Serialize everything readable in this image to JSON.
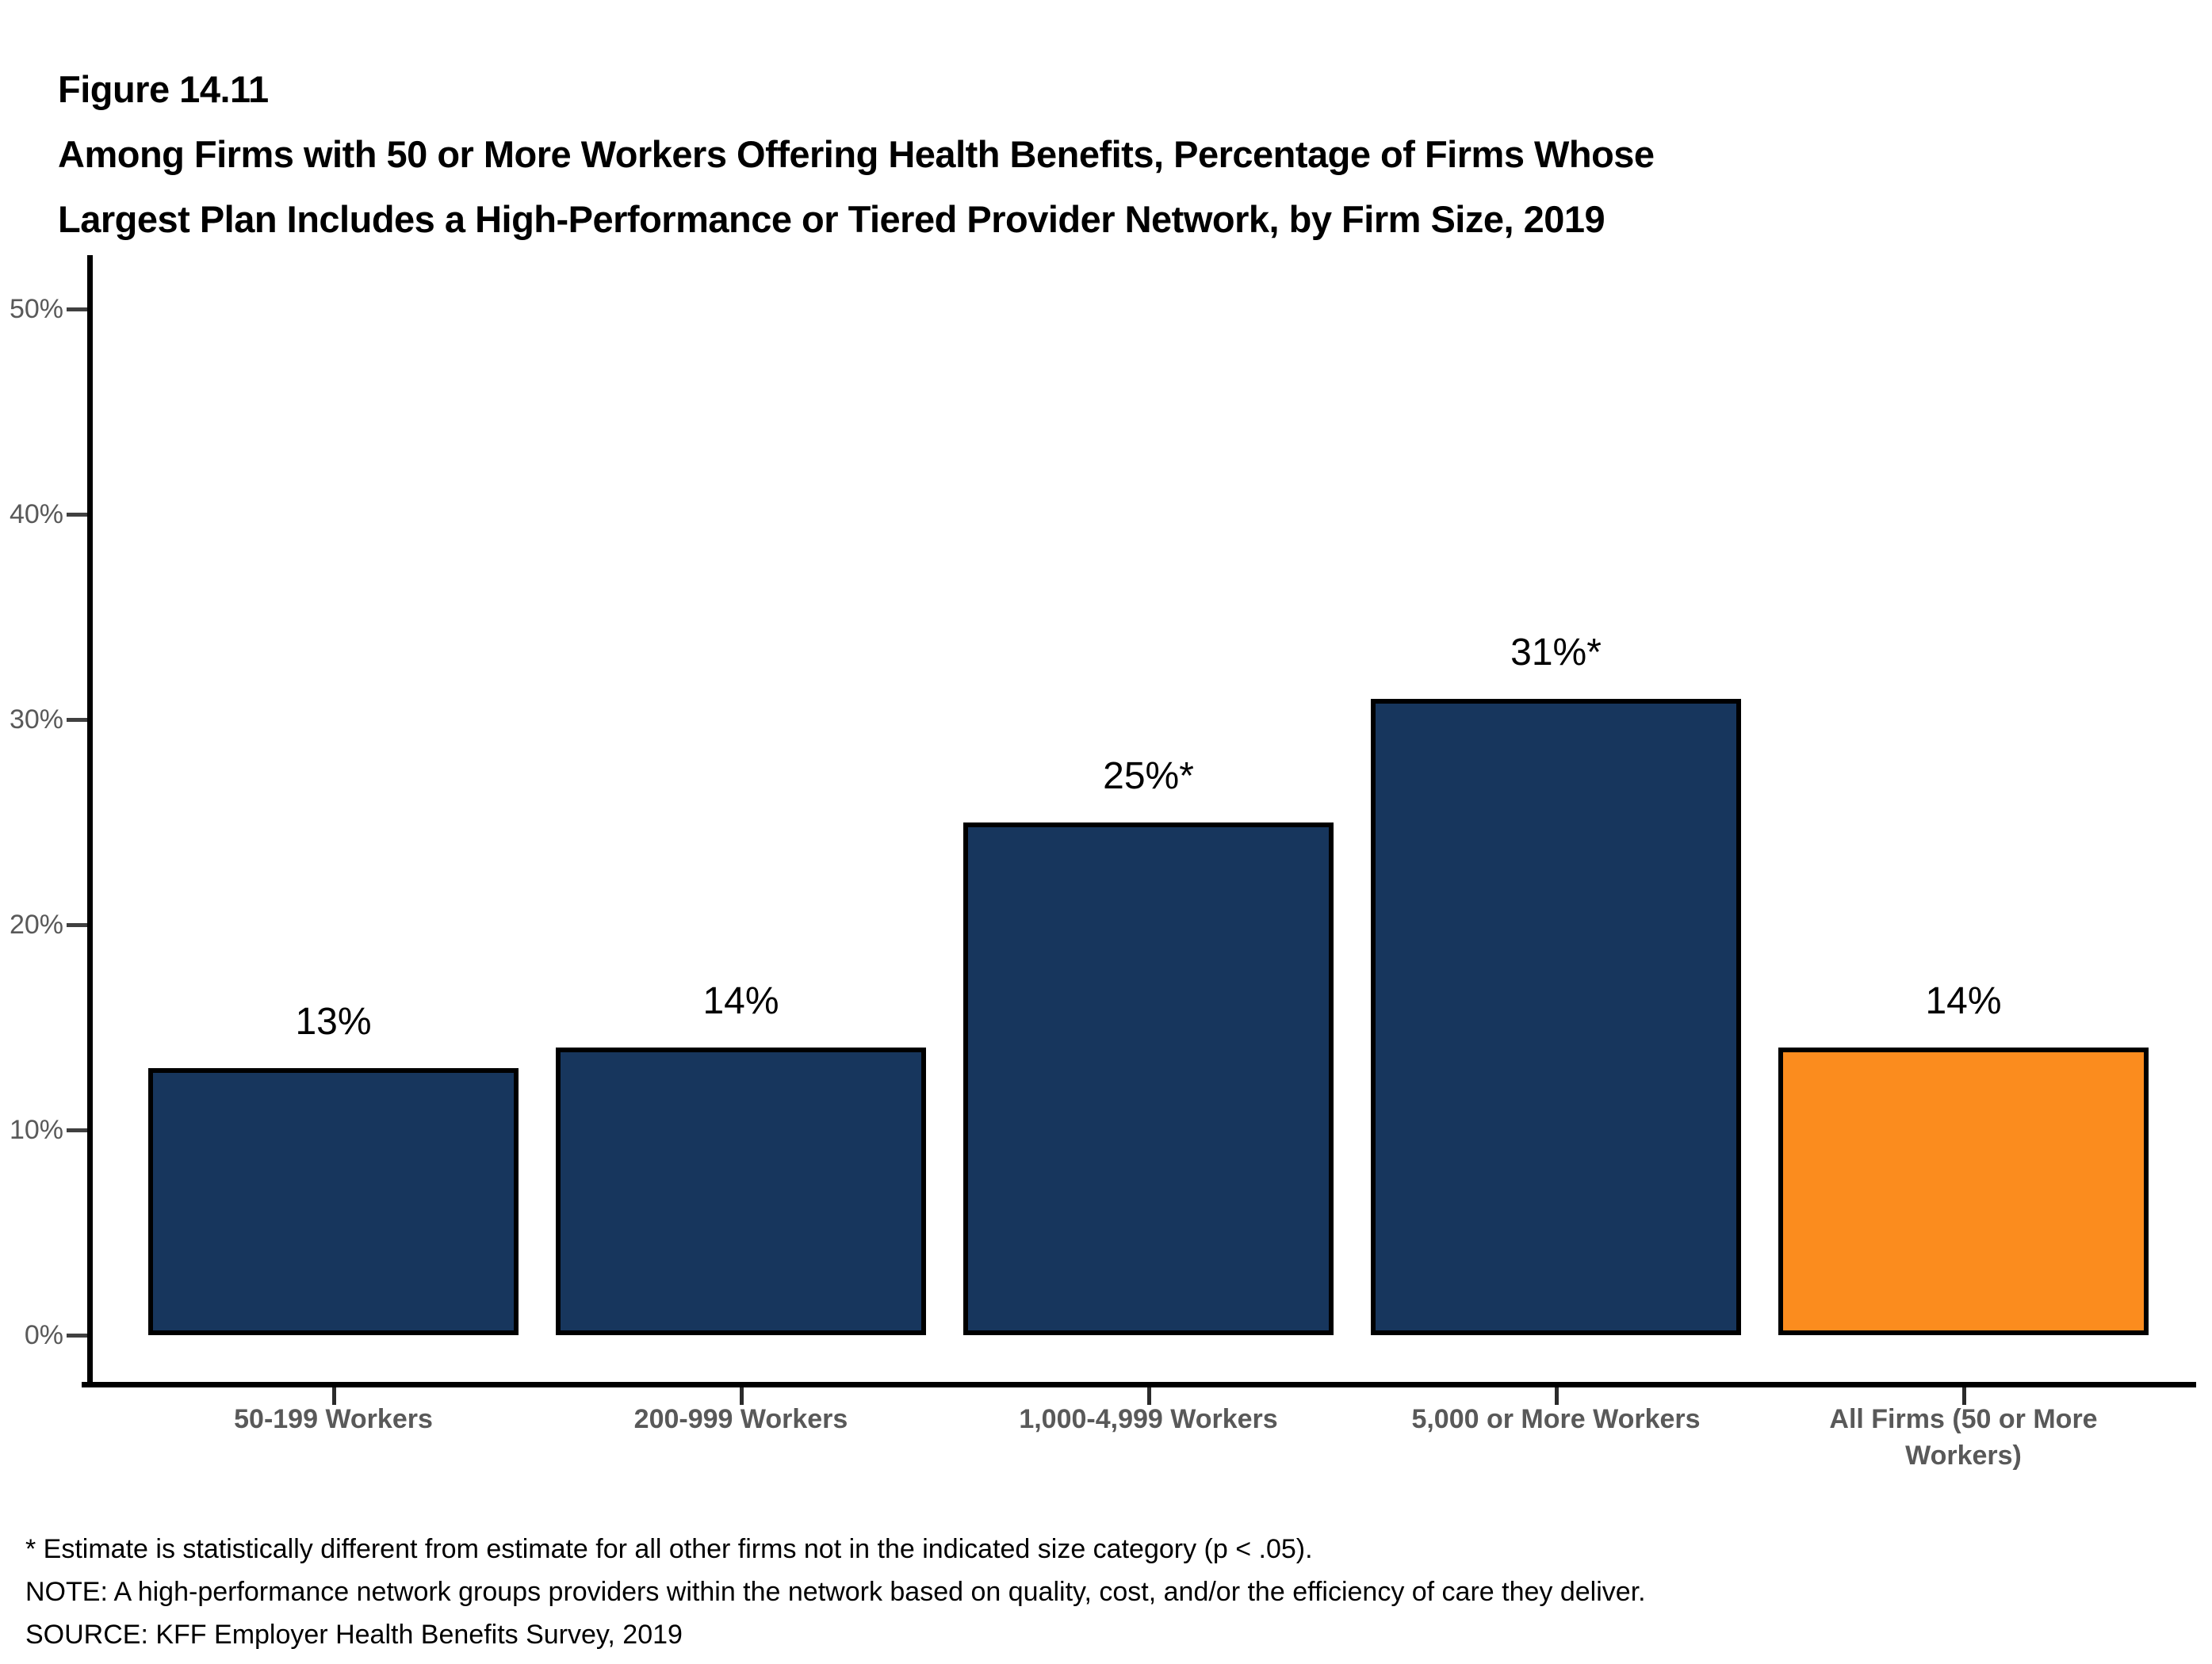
{
  "figure": {
    "label": "Figure 14.11",
    "title_lines": [
      "Among Firms with 50 or More Workers Offering Health Benefits, Percentage of Firms Whose",
      "Largest Plan Includes a High-Performance or Tiered Provider Network, by Firm Size, 2019"
    ]
  },
  "chart_data": {
    "type": "bar",
    "title": "Among Firms with 50 or More Workers Offering Health Benefits, Percentage of Firms Whose Largest Plan Includes a High-Performance or Tiered Provider Network, by Firm Size, 2019",
    "categories": [
      "50-199 Workers",
      "200-999 Workers",
      "1,000-4,999 Workers",
      "5,000 or More Workers",
      "All Firms (50 or More Workers)"
    ],
    "values": [
      13,
      14,
      25,
      31,
      14
    ],
    "value_labels": [
      "13%",
      "14%",
      "25%*",
      "31%*",
      "14%"
    ],
    "bar_colors": [
      "#17365D",
      "#17365D",
      "#17365D",
      "#17365D",
      "#FB8C1E"
    ],
    "xlabel": "",
    "ylabel": "",
    "ylim": [
      0,
      50
    ],
    "ytick_values": [
      0,
      10,
      20,
      30,
      40,
      50
    ],
    "ytick_labels": [
      "0%",
      "10%",
      "20%",
      "30%",
      "40%",
      "50%"
    ],
    "grid": false,
    "legend_position": "none",
    "colors": {
      "bar_navy": "#17365D",
      "bar_orange": "#FB8C1E",
      "axis": "#000000",
      "tick_label_gray": "#595959"
    }
  },
  "footnotes": [
    "* Estimate is statistically different from estimate for all other firms not in the indicated size category (p < .05).",
    "NOTE: A high-performance network groups providers within the network based on quality, cost, and/or the efficiency of care they deliver.",
    "SOURCE: KFF Employer Health Benefits Survey, 2019"
  ]
}
